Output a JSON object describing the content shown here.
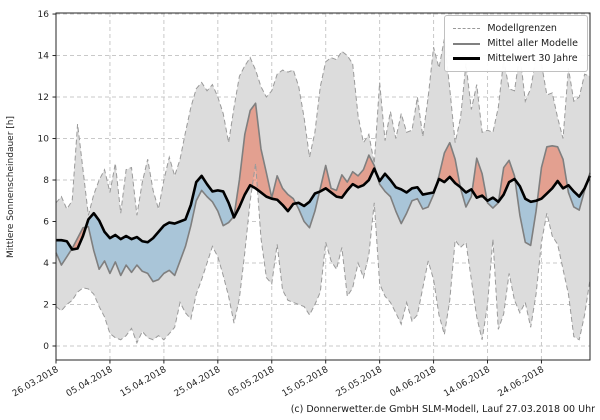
{
  "figure": {
    "copyright": "(c) Donnerwetter.de GmbH SLM-Modell, Lauf 27.03.2018 00 Uhr"
  },
  "legend": {
    "items": [
      {
        "label": "Modellgrenzen",
        "style": "dashed",
        "color": "#999999"
      },
      {
        "label": "Mittel aller Modelle",
        "style": "solid",
        "color": "#808080"
      },
      {
        "label": "Mittelwert 30 Jahre",
        "style": "thick",
        "color": "#000000"
      }
    ]
  },
  "chart_data": {
    "type": "line",
    "title": "",
    "xlabel": "",
    "ylabel": "Mittlere Sonnenscheindauer [h]",
    "x_unit": "days since 26.03.2018, daily values",
    "xlim": [
      0,
      99
    ],
    "ylim": [
      -0.675,
      16.05
    ],
    "grid": true,
    "legend_position": "top-right",
    "x_tick_positions": [
      0,
      10,
      20,
      30,
      40,
      50,
      60,
      70,
      80,
      90
    ],
    "x_tick_labels": [
      "26.03.2018",
      "05.04.2018",
      "15.04.2018",
      "25.04.2018",
      "05.05.2018",
      "15.05.2018",
      "25.05.2018",
      "04.06.2018",
      "14.06.2018",
      "24.06.2018"
    ],
    "y_ticks": [
      0,
      2,
      4,
      6,
      8,
      10,
      12,
      14,
      16
    ],
    "colors": {
      "band_fill": "#dcdcdc",
      "band_edge": "#9a9a9a",
      "model_mean": "#7f7f7f",
      "climate_mean": "#000000",
      "above_fill": "#e96f52",
      "below_fill": "#7fb2d6",
      "fill_alpha": 0.55,
      "grid": "#c9c9c9",
      "spine": "#262626",
      "tick_text": "#262626"
    },
    "series": [
      {
        "name": "Modellgrenzen (obere Grenze)",
        "role": "band-upper",
        "values": [
          6.9,
          7.2,
          6.6,
          7.0,
          10.7,
          8.5,
          6.3,
          7.3,
          8.0,
          8.5,
          7.4,
          8.8,
          6.4,
          8.5,
          8.6,
          6.3,
          7.9,
          9.0,
          7.5,
          6.6,
          8.0,
          9.1,
          8.2,
          9.0,
          10.3,
          11.5,
          12.4,
          12.7,
          12.3,
          12.6,
          12.0,
          11.2,
          9.8,
          11.5,
          13.0,
          13.5,
          13.9,
          13.3,
          12.5,
          12.0,
          12.3,
          13.1,
          13.3,
          13.2,
          13.3,
          12.5,
          11.0,
          9.1,
          10.3,
          12.5,
          13.7,
          13.9,
          13.8,
          14.2,
          14.0,
          13.6,
          11.1,
          9.8,
          10.2,
          8.8,
          12.7,
          9.9,
          11.3,
          10.0,
          11.2,
          10.3,
          10.4,
          12.0,
          10.1,
          12.0,
          14.4,
          13.4,
          14.8,
          12.4,
          9.8,
          11.0,
          13.6,
          11.4,
          12.6,
          10.3,
          10.4,
          10.3,
          11.5,
          13.8,
          12.4,
          12.3,
          14.1,
          11.8,
          12.4,
          13.9,
          13.6,
          12.1,
          12.2,
          11.0,
          10.0,
          13.4,
          11.8,
          12.0,
          13.1,
          13.0
        ]
      },
      {
        "name": "Modellgrenzen (untere Grenze)",
        "role": "band-lower",
        "values": [
          1.9,
          1.7,
          2.0,
          2.2,
          2.6,
          2.8,
          2.75,
          2.5,
          1.9,
          1.4,
          0.6,
          0.4,
          0.3,
          0.5,
          0.85,
          0.15,
          0.7,
          0.4,
          0.3,
          0.5,
          0.3,
          0.6,
          0.9,
          2.1,
          1.6,
          1.3,
          2.5,
          3.2,
          4.0,
          4.8,
          4.3,
          3.4,
          2.4,
          1.1,
          2.3,
          4.5,
          7.0,
          8.8,
          5.2,
          3.3,
          3.0,
          4.9,
          2.7,
          2.2,
          2.1,
          2.0,
          1.9,
          1.5,
          2.0,
          2.6,
          5.0,
          4.1,
          3.7,
          4.75,
          2.4,
          2.8,
          4.0,
          3.3,
          4.4,
          6.9,
          3.0,
          2.4,
          2.1,
          1.6,
          1.05,
          2.1,
          1.2,
          1.5,
          2.8,
          4.1,
          3.2,
          1.5,
          0.55,
          2.2,
          5.1,
          4.75,
          5.0,
          3.2,
          1.4,
          0.3,
          2.0,
          5.15,
          0.8,
          1.55,
          3.5,
          2.2,
          1.6,
          2.1,
          0.9,
          2.5,
          5.0,
          6.4,
          5.3,
          4.9,
          3.7,
          2.5,
          0.45,
          0.3,
          1.5,
          3.2
        ]
      },
      {
        "name": "Mittel aller Modelle",
        "role": "model-mean",
        "values": [
          4.5,
          3.9,
          4.3,
          4.7,
          5.2,
          5.7,
          5.75,
          4.6,
          3.7,
          4.1,
          3.5,
          4.05,
          3.4,
          3.9,
          3.55,
          3.9,
          3.6,
          3.5,
          3.1,
          3.2,
          3.5,
          3.65,
          3.4,
          4.1,
          4.8,
          5.8,
          7.0,
          7.5,
          7.2,
          6.95,
          6.5,
          5.8,
          5.95,
          6.25,
          8.0,
          10.2,
          11.35,
          11.7,
          9.5,
          8.35,
          7.15,
          8.2,
          7.6,
          7.3,
          7.1,
          6.6,
          6.0,
          5.7,
          6.5,
          7.6,
          8.7,
          7.6,
          7.5,
          8.25,
          7.9,
          8.4,
          8.2,
          8.5,
          9.2,
          8.7,
          7.8,
          7.45,
          7.2,
          6.5,
          5.9,
          6.4,
          7.0,
          7.1,
          6.6,
          6.7,
          7.3,
          8.2,
          9.3,
          9.8,
          9.0,
          7.6,
          6.7,
          7.2,
          9.05,
          8.3,
          6.9,
          6.65,
          6.9,
          8.6,
          8.95,
          8.2,
          6.3,
          5.0,
          4.85,
          6.5,
          8.6,
          9.6,
          9.65,
          9.6,
          9.0,
          7.4,
          6.7,
          6.55,
          7.5,
          8.35
        ]
      },
      {
        "name": "Mittelwert 30 Jahre",
        "role": "climate-mean",
        "values": [
          5.1,
          5.1,
          5.05,
          4.65,
          4.7,
          5.3,
          6.1,
          6.4,
          6.05,
          5.5,
          5.2,
          5.35,
          5.15,
          5.3,
          5.15,
          5.25,
          5.05,
          5.0,
          5.2,
          5.5,
          5.8,
          5.95,
          5.9,
          6.0,
          6.1,
          6.8,
          7.9,
          8.2,
          7.8,
          7.45,
          7.5,
          7.45,
          6.9,
          6.2,
          6.7,
          7.3,
          7.75,
          7.6,
          7.4,
          7.2,
          7.1,
          7.05,
          6.8,
          6.5,
          6.85,
          6.9,
          6.75,
          6.95,
          7.35,
          7.45,
          7.6,
          7.4,
          7.2,
          7.15,
          7.5,
          7.8,
          7.65,
          7.75,
          8.0,
          8.55,
          7.95,
          8.3,
          8.0,
          7.65,
          7.55,
          7.4,
          7.6,
          7.65,
          7.3,
          7.35,
          7.4,
          8.05,
          7.9,
          8.15,
          7.85,
          7.65,
          7.4,
          7.55,
          7.15,
          7.25,
          7.0,
          7.15,
          6.95,
          7.3,
          7.9,
          8.05,
          7.7,
          7.1,
          6.95,
          7.0,
          7.1,
          7.35,
          7.6,
          7.95,
          7.6,
          7.75,
          7.45,
          7.2,
          7.6,
          8.2
        ]
      }
    ]
  }
}
